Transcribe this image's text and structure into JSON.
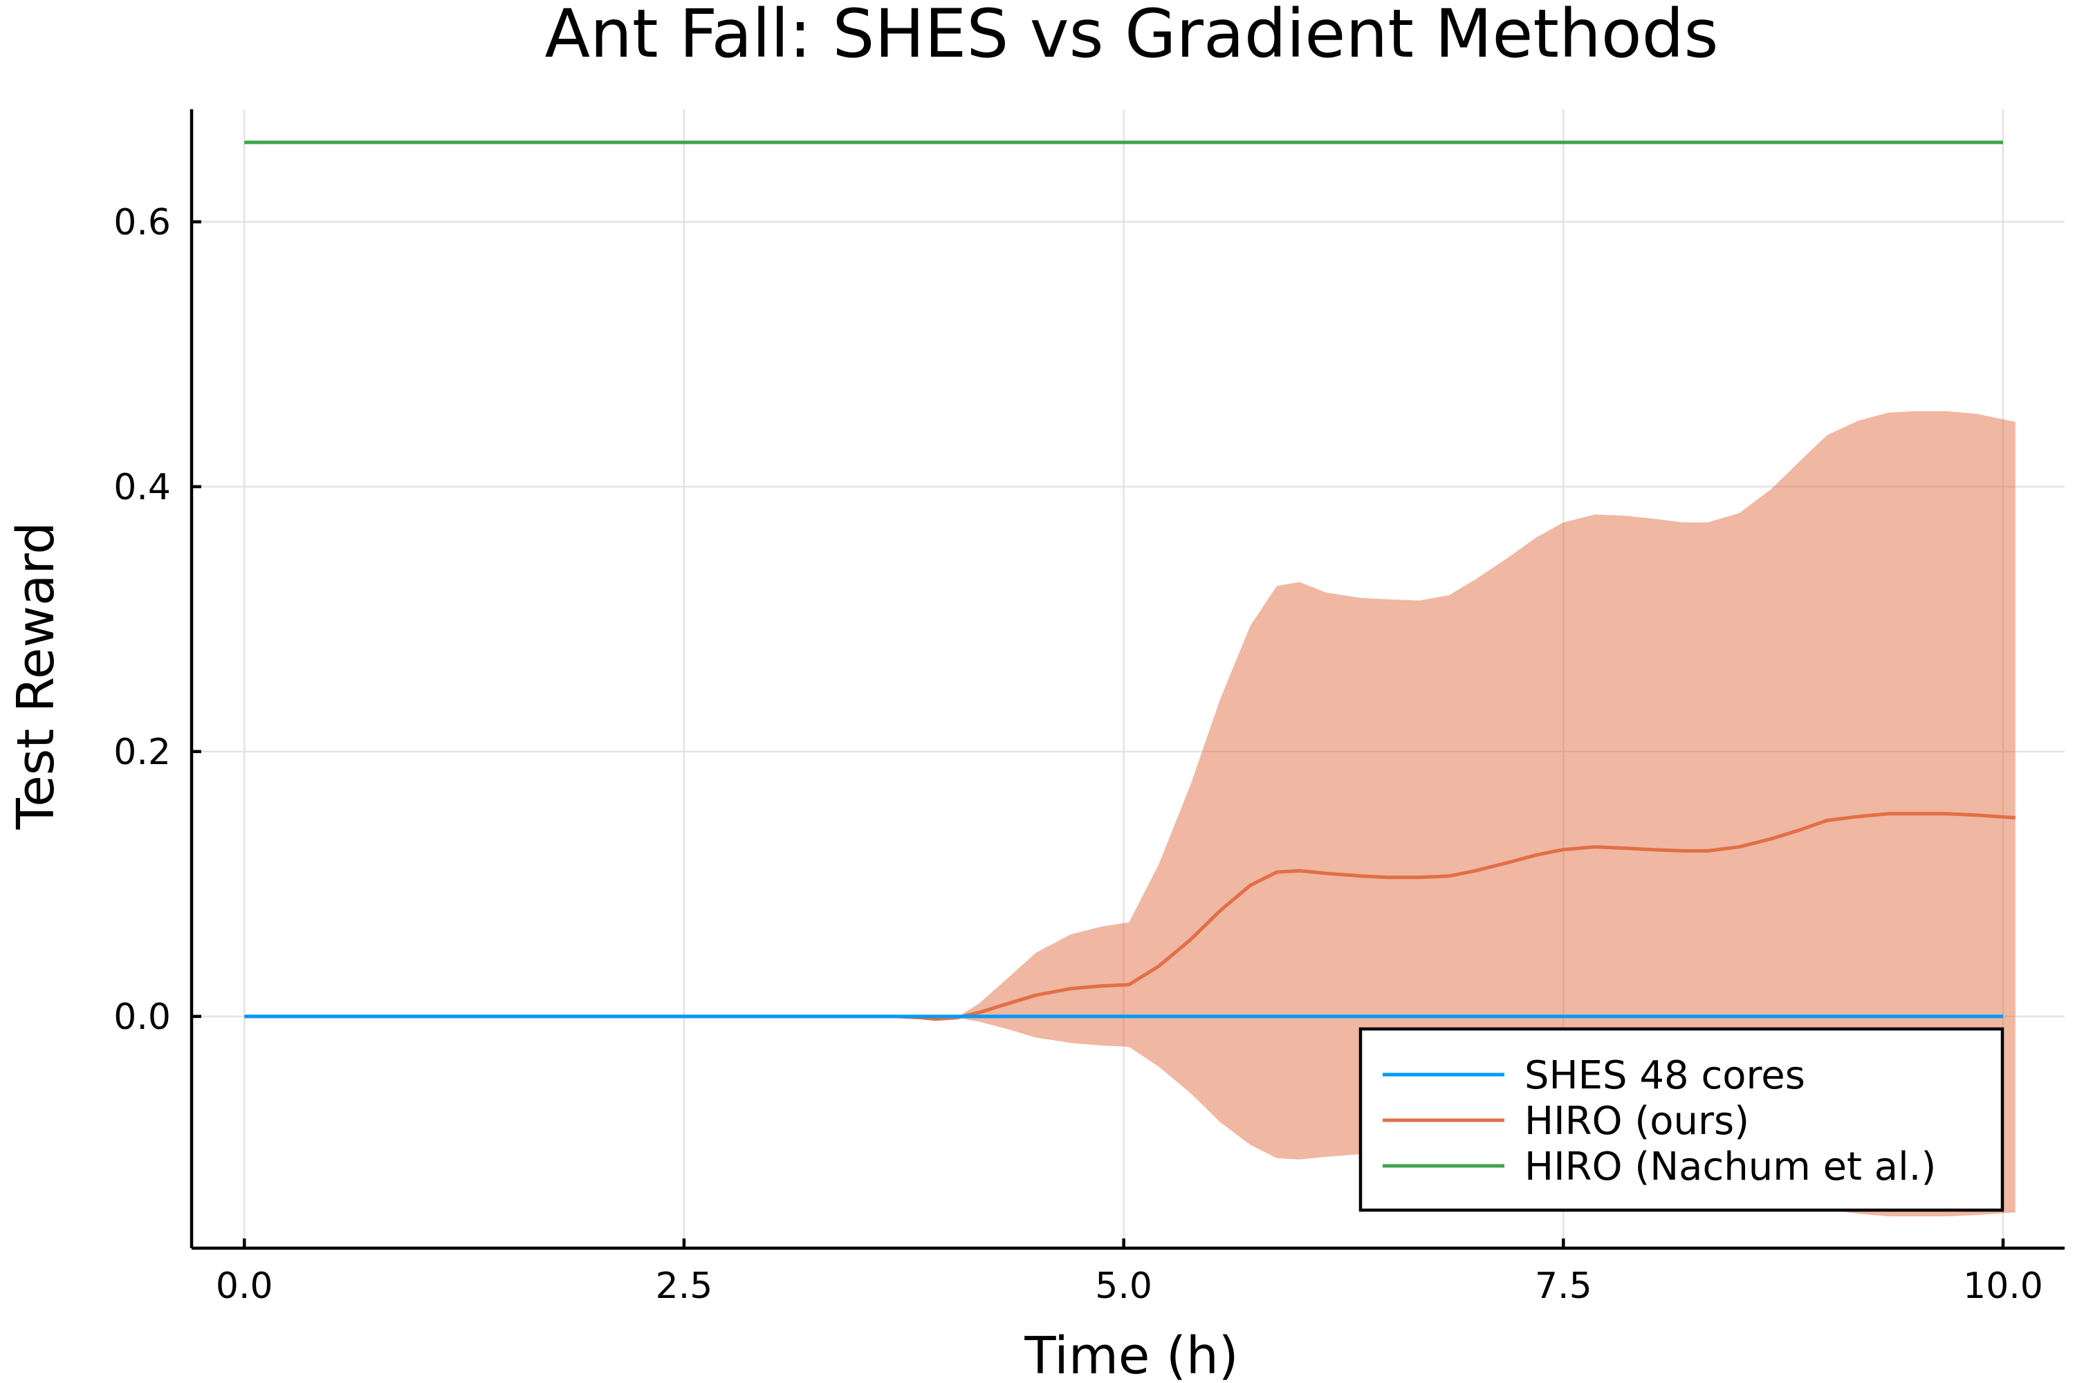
{
  "chart_data": {
    "type": "line",
    "title": "Ant Fall: SHES vs Gradient Methods",
    "xlabel": "Time (h)",
    "ylabel": "Test Reward",
    "xlim": [
      -0.3,
      10.35
    ],
    "ylim": [
      -0.175,
      0.685
    ],
    "x_ticks": [
      0.0,
      2.5,
      5.0,
      7.5,
      10.0
    ],
    "x_tick_labels": [
      "0.0",
      "2.5",
      "5.0",
      "7.5",
      "10.0"
    ],
    "y_ticks": [
      0.0,
      0.2,
      0.4,
      0.6
    ],
    "y_tick_labels": [
      "0.0",
      "0.2",
      "0.4",
      "0.6"
    ],
    "grid": true,
    "legend_position": "bottom-right",
    "series": [
      {
        "name": "SHES 48 cores",
        "color": "#009afa",
        "x": [
          0.0,
          10.0
        ],
        "y": [
          0.0,
          0.0
        ]
      },
      {
        "name": "HIRO (ours)",
        "color": "#e26f46",
        "band_color": "#e26f46",
        "band_opacity": 0.5,
        "x": [
          0.0,
          3.7,
          3.85,
          3.93,
          4.05,
          4.18,
          4.35,
          4.5,
          4.7,
          4.88,
          5.03,
          5.2,
          5.38,
          5.55,
          5.72,
          5.87,
          6.0,
          6.15,
          6.35,
          6.5,
          6.68,
          6.85,
          7.0,
          7.18,
          7.35,
          7.5,
          7.68,
          7.85,
          8.0,
          8.18,
          8.32,
          8.5,
          8.68,
          8.85,
          9.0,
          9.18,
          9.35,
          9.5,
          9.68,
          9.85,
          10.07
        ],
        "y": [
          0.0,
          0.0,
          -0.001,
          -0.002,
          -0.001,
          0.003,
          0.01,
          0.016,
          0.021,
          0.023,
          0.024,
          0.038,
          0.058,
          0.08,
          0.099,
          0.109,
          0.11,
          0.108,
          0.106,
          0.105,
          0.105,
          0.106,
          0.11,
          0.116,
          0.122,
          0.126,
          0.128,
          0.127,
          0.126,
          0.125,
          0.125,
          0.128,
          0.134,
          0.141,
          0.148,
          0.151,
          0.153,
          0.153,
          0.153,
          0.152,
          0.15
        ],
        "lower": [
          0.0,
          0.0,
          -0.001,
          -0.002,
          -0.001,
          -0.004,
          -0.01,
          -0.016,
          -0.02,
          -0.022,
          -0.023,
          -0.038,
          -0.058,
          -0.08,
          -0.097,
          -0.107,
          -0.108,
          -0.106,
          -0.104,
          -0.104,
          -0.104,
          -0.105,
          -0.109,
          -0.115,
          -0.121,
          -0.124,
          -0.127,
          -0.126,
          -0.125,
          -0.124,
          -0.124,
          -0.127,
          -0.133,
          -0.14,
          -0.146,
          -0.149,
          -0.151,
          -0.151,
          -0.151,
          -0.15,
          -0.148
        ],
        "upper": [
          0.0,
          0.0,
          -0.001,
          -0.002,
          -0.001,
          0.01,
          0.03,
          0.048,
          0.062,
          0.068,
          0.071,
          0.115,
          0.175,
          0.24,
          0.295,
          0.325,
          0.328,
          0.32,
          0.316,
          0.315,
          0.314,
          0.318,
          0.33,
          0.346,
          0.362,
          0.373,
          0.379,
          0.378,
          0.376,
          0.373,
          0.373,
          0.38,
          0.398,
          0.42,
          0.439,
          0.45,
          0.456,
          0.457,
          0.457,
          0.455,
          0.449
        ]
      },
      {
        "name": "HIRO (Nachum et al.)",
        "color": "#3ea44e",
        "x": [
          0.0,
          10.0
        ],
        "y": [
          0.66,
          0.66
        ]
      }
    ]
  }
}
